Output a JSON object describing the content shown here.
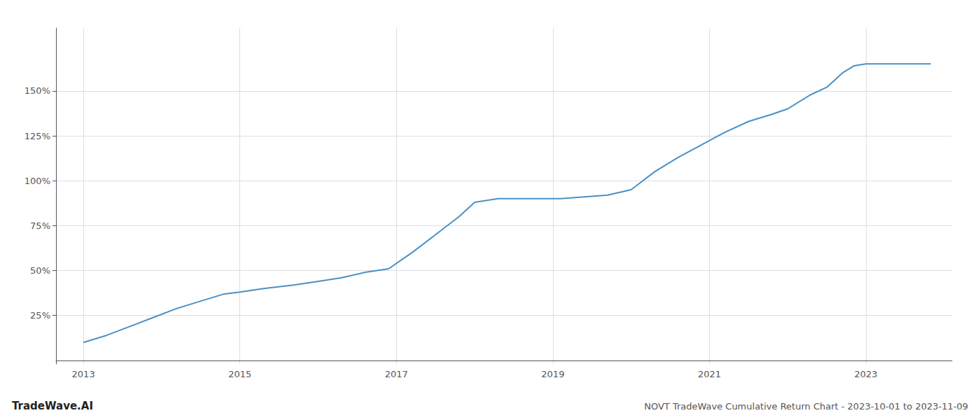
{
  "chart_data": {
    "type": "line",
    "title": "NOVT TradeWave Cumulative Return Chart - 2023-10-01 to 2023-11-09",
    "annotations": [
      "TradeWave.AI"
    ],
    "x": [
      2013.0,
      2013.3,
      2013.6,
      2013.9,
      2014.2,
      2014.5,
      2014.8,
      2015.0,
      2015.3,
      2015.7,
      2016.0,
      2016.3,
      2016.6,
      2016.9,
      2017.2,
      2017.5,
      2017.8,
      2018.0,
      2018.3,
      2018.6,
      2018.9,
      2019.1,
      2019.4,
      2019.7,
      2020.0,
      2020.3,
      2020.6,
      2020.9,
      2021.2,
      2021.5,
      2021.8,
      2022.0,
      2022.3,
      2022.5,
      2022.7,
      2022.85,
      2023.0,
      2023.4,
      2023.83
    ],
    "values": [
      10,
      14,
      19,
      24,
      29,
      33,
      37,
      38,
      40,
      42,
      44,
      46,
      49,
      51,
      60,
      70,
      80,
      88,
      90,
      90,
      90,
      90,
      91,
      92,
      95,
      105,
      113,
      120,
      127,
      133,
      137,
      140,
      148,
      152,
      160,
      164,
      165,
      165,
      165
    ],
    "color": "#4a90c4",
    "xlim": [
      2012.65,
      2024.1
    ],
    "xticks": [
      2013,
      2015,
      2017,
      2019,
      2021,
      2023
    ],
    "ylim": [
      -2,
      185
    ],
    "yticks": [
      {
        "value": 25,
        "label": "25%"
      },
      {
        "value": 50,
        "label": "50%"
      },
      {
        "value": 75,
        "label": "75%"
      },
      {
        "value": 100,
        "label": "100%"
      },
      {
        "value": 125,
        "label": "125%"
      },
      {
        "value": 150,
        "label": "150%"
      }
    ],
    "grid": true
  }
}
